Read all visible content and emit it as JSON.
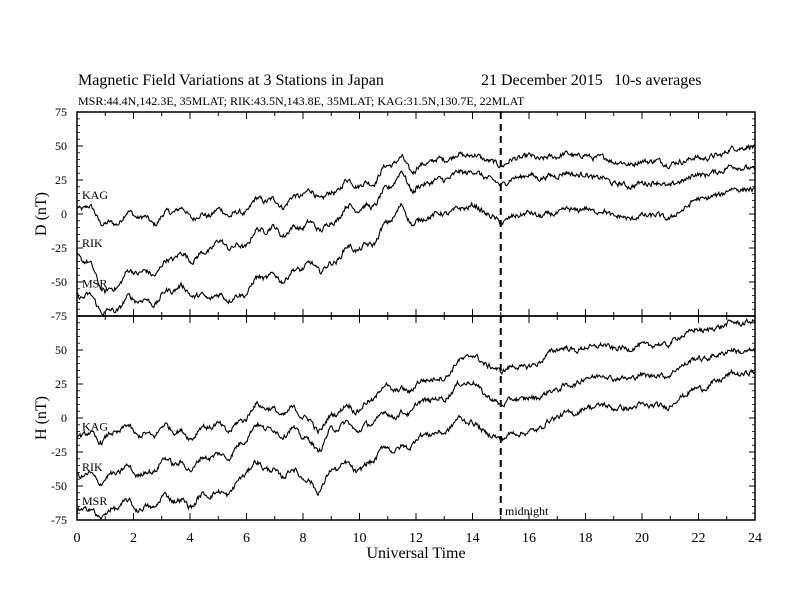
{
  "header": {
    "title": "Magnetic Field Variations at 3 Stations in Japan",
    "date": "21 December 2015",
    "averaging": "10-s averages",
    "stations_line": "MSR:44.4N,142.3E, 35MLAT;  RIK:43.5N,143.8E, 35MLAT;  KAG:31.5N,130.7E, 22MLAT"
  },
  "annotations": {
    "midnight": "midnight",
    "midnight_ut": 15
  },
  "colors": {
    "line": "#000000",
    "background": "#ffffff"
  },
  "chart_data": [
    {
      "type": "line",
      "panel": "top",
      "ylabel": "D (nT)",
      "xlabel": "",
      "xlim": [
        0,
        24
      ],
      "ylim": [
        -75,
        75
      ],
      "yticks": [
        -75,
        -50,
        -25,
        0,
        25,
        50,
        75
      ],
      "grid": false,
      "x": [
        0,
        1,
        2,
        3,
        4,
        5,
        6,
        7,
        8,
        9,
        10,
        11,
        11.5,
        12,
        13,
        13.5,
        14,
        15,
        16,
        17,
        18,
        19,
        20,
        21,
        22,
        23,
        24
      ],
      "series": [
        {
          "name": "KAG",
          "values": [
            5,
            -5,
            -3,
            -2,
            2,
            -2,
            5,
            10,
            12,
            17,
            22,
            32,
            40,
            35,
            40,
            45,
            42,
            37,
            42,
            42,
            44,
            38,
            38,
            38,
            40,
            46,
            50
          ]
        },
        {
          "name": "RIK",
          "values": [
            -30,
            -55,
            -45,
            -38,
            -30,
            -25,
            -20,
            -10,
            -12,
            -5,
            5,
            15,
            30,
            20,
            25,
            32,
            30,
            23,
            28,
            28,
            30,
            22,
            22,
            22,
            28,
            34,
            33
          ]
        },
        {
          "name": "MSR",
          "values": [
            -60,
            -70,
            -65,
            -60,
            -55,
            -65,
            -55,
            -45,
            -42,
            -35,
            -25,
            -10,
            5,
            -5,
            0,
            5,
            5,
            -5,
            0,
            0,
            5,
            -2,
            -2,
            -2,
            10,
            17,
            18
          ]
        }
      ]
    },
    {
      "type": "line",
      "panel": "bottom",
      "ylabel": "H (nT)",
      "xlabel": "Universal Time",
      "xlim": [
        0,
        24
      ],
      "ylim": [
        -75,
        75
      ],
      "yticks": [
        -75,
        -50,
        -25,
        0,
        25,
        50,
        75
      ],
      "xticks": [
        0,
        2,
        4,
        6,
        8,
        10,
        12,
        14,
        16,
        18,
        20,
        22,
        24
      ],
      "grid": false,
      "x": [
        0,
        1,
        2,
        3,
        4,
        5,
        6,
        6.7,
        8,
        8.5,
        9,
        10,
        11,
        12,
        13,
        13.5,
        14,
        15,
        16,
        17,
        18,
        19,
        20,
        21,
        22,
        23,
        24
      ],
      "series": [
        {
          "name": "KAG",
          "values": [
            -15,
            -12,
            -10,
            -10,
            -10,
            -8,
            0,
            10,
            0,
            -5,
            0,
            10,
            20,
            25,
            30,
            42,
            45,
            35,
            38,
            50,
            52,
            52,
            52,
            56,
            65,
            68,
            72
          ]
        },
        {
          "name": "RIK",
          "values": [
            -45,
            -42,
            -40,
            -35,
            -33,
            -30,
            -15,
            -5,
            -15,
            -20,
            -10,
            -5,
            0,
            10,
            15,
            25,
            25,
            10,
            15,
            20,
            30,
            30,
            30,
            33,
            44,
            48,
            50
          ]
        },
        {
          "name": "MSR",
          "values": [
            -70,
            -68,
            -65,
            -62,
            -60,
            -58,
            -40,
            -35,
            -45,
            -50,
            -40,
            -35,
            -25,
            -15,
            -10,
            0,
            -5,
            -15,
            -10,
            0,
            8,
            8,
            8,
            10,
            22,
            30,
            35
          ]
        }
      ]
    }
  ]
}
